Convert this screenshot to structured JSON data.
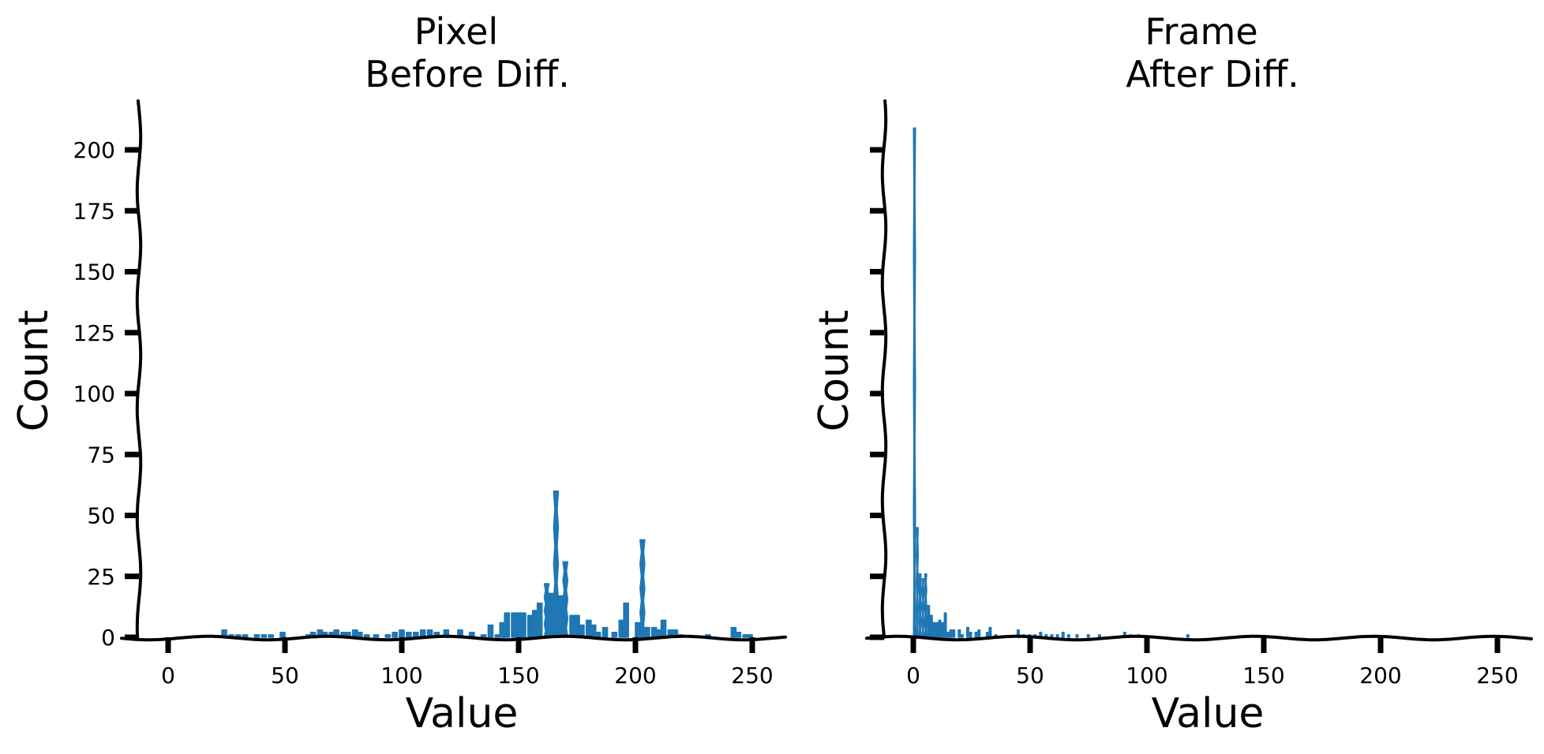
{
  "figure": {
    "bar_color": "#1f77b4",
    "axis_color": "#000000"
  },
  "chart_data": [
    {
      "type": "bar",
      "title": "Pixel\nBefore Diff.",
      "title_lines": [
        "Pixel",
        "Before Diff."
      ],
      "xlabel": "Value",
      "ylabel": "Count",
      "xlim": [
        -12,
        265
      ],
      "ylim": [
        0,
        220
      ],
      "xticks": [
        0,
        50,
        100,
        150,
        200,
        250
      ],
      "yticks": [
        0,
        25,
        50,
        75,
        100,
        125,
        150,
        175,
        200
      ],
      "ytick_labels_visible": true,
      "grid": false,
      "style": "xkcd",
      "bin_width": 2.4,
      "bins": [
        {
          "x": 24,
          "count": 3
        },
        {
          "x": 27,
          "count": 1
        },
        {
          "x": 30,
          "count": 1
        },
        {
          "x": 33,
          "count": 1
        },
        {
          "x": 38,
          "count": 1
        },
        {
          "x": 41,
          "count": 1
        },
        {
          "x": 44,
          "count": 1
        },
        {
          "x": 49,
          "count": 2
        },
        {
          "x": 60,
          "count": 1
        },
        {
          "x": 62,
          "count": 2
        },
        {
          "x": 65,
          "count": 3
        },
        {
          "x": 67,
          "count": 2
        },
        {
          "x": 70,
          "count": 2
        },
        {
          "x": 72,
          "count": 3
        },
        {
          "x": 75,
          "count": 2
        },
        {
          "x": 77,
          "count": 2
        },
        {
          "x": 80,
          "count": 3
        },
        {
          "x": 82,
          "count": 2
        },
        {
          "x": 85,
          "count": 1
        },
        {
          "x": 89,
          "count": 1
        },
        {
          "x": 94,
          "count": 1
        },
        {
          "x": 97,
          "count": 2
        },
        {
          "x": 100,
          "count": 3
        },
        {
          "x": 103,
          "count": 2
        },
        {
          "x": 106,
          "count": 2
        },
        {
          "x": 109,
          "count": 3
        },
        {
          "x": 112,
          "count": 3
        },
        {
          "x": 115,
          "count": 2
        },
        {
          "x": 119,
          "count": 3
        },
        {
          "x": 125,
          "count": 3
        },
        {
          "x": 130,
          "count": 2
        },
        {
          "x": 135,
          "count": 1
        },
        {
          "x": 138,
          "count": 5
        },
        {
          "x": 141,
          "count": 1
        },
        {
          "x": 143,
          "count": 6
        },
        {
          "x": 145,
          "count": 10
        },
        {
          "x": 148,
          "count": 10
        },
        {
          "x": 150,
          "count": 10
        },
        {
          "x": 152,
          "count": 10
        },
        {
          "x": 155,
          "count": 9
        },
        {
          "x": 157,
          "count": 11
        },
        {
          "x": 159,
          "count": 14
        },
        {
          "x": 162,
          "count": 22
        },
        {
          "x": 164,
          "count": 18
        },
        {
          "x": 166,
          "count": 60
        },
        {
          "x": 168,
          "count": 17
        },
        {
          "x": 170,
          "count": 31
        },
        {
          "x": 173,
          "count": 9
        },
        {
          "x": 175,
          "count": 9
        },
        {
          "x": 177,
          "count": 5
        },
        {
          "x": 180,
          "count": 7
        },
        {
          "x": 182,
          "count": 5
        },
        {
          "x": 184,
          "count": 2
        },
        {
          "x": 187,
          "count": 4
        },
        {
          "x": 191,
          "count": 2
        },
        {
          "x": 194,
          "count": 7
        },
        {
          "x": 196,
          "count": 14
        },
        {
          "x": 201,
          "count": 6
        },
        {
          "x": 203,
          "count": 40
        },
        {
          "x": 205,
          "count": 4
        },
        {
          "x": 208,
          "count": 4
        },
        {
          "x": 210,
          "count": 3
        },
        {
          "x": 212,
          "count": 7
        },
        {
          "x": 215,
          "count": 3
        },
        {
          "x": 217,
          "count": 3
        },
        {
          "x": 219,
          "count": 1
        },
        {
          "x": 231,
          "count": 1
        },
        {
          "x": 242,
          "count": 4
        },
        {
          "x": 244,
          "count": 2
        },
        {
          "x": 247,
          "count": 1
        },
        {
          "x": 249,
          "count": 1
        }
      ]
    },
    {
      "type": "bar",
      "title": "Frame\nAfter Diff.",
      "title_lines": [
        "Frame",
        "After Diff."
      ],
      "xlabel": "Value",
      "ylabel": "Count",
      "xlim": [
        -12,
        265
      ],
      "ylim": [
        0,
        220
      ],
      "xticks": [
        0,
        50,
        100,
        150,
        200,
        250
      ],
      "yticks": [
        0,
        25,
        50,
        75,
        100,
        125,
        150,
        175,
        200
      ],
      "ytick_labels_visible": false,
      "grid": false,
      "style": "xkcd",
      "bin_width": 1.2,
      "bins": [
        {
          "x": 0.5,
          "count": 209
        },
        {
          "x": 1.7,
          "count": 45
        },
        {
          "x": 2.9,
          "count": 26
        },
        {
          "x": 4.1,
          "count": 24
        },
        {
          "x": 5.3,
          "count": 26
        },
        {
          "x": 6.5,
          "count": 13
        },
        {
          "x": 7.7,
          "count": 9
        },
        {
          "x": 8.9,
          "count": 6
        },
        {
          "x": 10.1,
          "count": 6
        },
        {
          "x": 11.3,
          "count": 7
        },
        {
          "x": 12.5,
          "count": 6
        },
        {
          "x": 13.7,
          "count": 10
        },
        {
          "x": 14.9,
          "count": 2
        },
        {
          "x": 16.1,
          "count": 3
        },
        {
          "x": 17.3,
          "count": 3
        },
        {
          "x": 19.7,
          "count": 3
        },
        {
          "x": 20.9,
          "count": 1
        },
        {
          "x": 23.3,
          "count": 4
        },
        {
          "x": 24.5,
          "count": 2
        },
        {
          "x": 26.9,
          "count": 2
        },
        {
          "x": 28.1,
          "count": 3
        },
        {
          "x": 31.7,
          "count": 2
        },
        {
          "x": 32.9,
          "count": 4
        },
        {
          "x": 35.3,
          "count": 1
        },
        {
          "x": 44.9,
          "count": 3
        },
        {
          "x": 47.3,
          "count": 1
        },
        {
          "x": 49.7,
          "count": 1
        },
        {
          "x": 52.1,
          "count": 1
        },
        {
          "x": 54.5,
          "count": 2
        },
        {
          "x": 56.9,
          "count": 1
        },
        {
          "x": 59.3,
          "count": 1
        },
        {
          "x": 61.7,
          "count": 1
        },
        {
          "x": 64.1,
          "count": 2
        },
        {
          "x": 66.5,
          "count": 1
        },
        {
          "x": 70.1,
          "count": 1
        },
        {
          "x": 74.9,
          "count": 1
        },
        {
          "x": 79.7,
          "count": 1
        },
        {
          "x": 90.5,
          "count": 2
        },
        {
          "x": 92.9,
          "count": 1
        },
        {
          "x": 96.5,
          "count": 1
        },
        {
          "x": 117.5,
          "count": 1
        }
      ]
    }
  ]
}
